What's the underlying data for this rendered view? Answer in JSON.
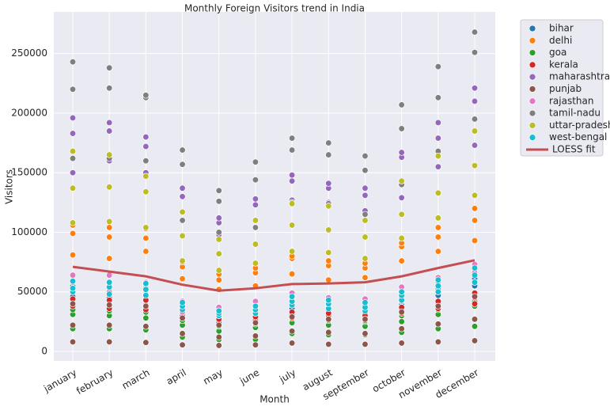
{
  "chart_data": {
    "type": "scatter",
    "title": "Monthly Foreign Visitors trend in India",
    "x_label": "Month",
    "y_label": "Visitors",
    "categories": [
      "january",
      "february",
      "march",
      "april",
      "may",
      "june",
      "july",
      "august",
      "september",
      "october",
      "november",
      "december"
    ],
    "ylim": [
      -8000,
      285000
    ],
    "yticks": [
      0,
      50000,
      100000,
      150000,
      200000,
      250000
    ],
    "grid": true,
    "legend": "outside-right",
    "series": [
      {
        "name": "bihar",
        "color": "#1f77b4",
        "kind": "points",
        "values": [
          [
            46000,
            51000,
            55000
          ],
          [
            45000,
            50000,
            56000
          ],
          [
            44000,
            49000,
            54000
          ],
          [
            32000,
            36000,
            39000
          ],
          [
            28000,
            30000,
            33000
          ],
          [
            30000,
            33000,
            36000
          ],
          [
            36000,
            40000,
            44000
          ],
          [
            34000,
            38000,
            41000
          ],
          [
            32000,
            35000,
            39000
          ],
          [
            40000,
            45000,
            48000
          ],
          [
            47000,
            52000,
            57000
          ],
          [
            55000,
            61000,
            67000
          ]
        ]
      },
      {
        "name": "delhi",
        "color": "#ff7f0e",
        "kind": "points",
        "values": [
          [
            81000,
            99000,
            106000
          ],
          [
            78000,
            96000,
            104000
          ],
          [
            84000,
            95000,
            103000
          ],
          [
            61000,
            71000,
            75000
          ],
          [
            52000,
            60000,
            65000
          ],
          [
            55000,
            66000,
            70000
          ],
          [
            65000,
            78000,
            80000
          ],
          [
            60000,
            72000,
            76000
          ],
          [
            62000,
            70000,
            74000
          ],
          [
            76000,
            88000,
            91000
          ],
          [
            84000,
            96000,
            104000
          ],
          [
            93000,
            110000,
            120000
          ]
        ]
      },
      {
        "name": "goa",
        "color": "#2ca02c",
        "kind": "points",
        "values": [
          [
            19000,
            31000,
            35000
          ],
          [
            19000,
            30000,
            34000
          ],
          [
            18000,
            28000,
            33000
          ],
          [
            12000,
            22000,
            26000
          ],
          [
            10000,
            17000,
            21000
          ],
          [
            10000,
            20000,
            23000
          ],
          [
            15000,
            24000,
            28000
          ],
          [
            14000,
            22000,
            26000
          ],
          [
            14000,
            21000,
            25000
          ],
          [
            16000,
            25000,
            30000
          ],
          [
            19000,
            31000,
            35000
          ],
          [
            21000,
            38000,
            42000
          ]
        ]
      },
      {
        "name": "kerala",
        "color": "#d62728",
        "kind": "points",
        "values": [
          [
            38000,
            41000,
            44000
          ],
          [
            36000,
            40000,
            43000
          ],
          [
            35000,
            39000,
            43000
          ],
          [
            28000,
            30000,
            33000
          ],
          [
            22000,
            24000,
            27000
          ],
          [
            24000,
            26000,
            29000
          ],
          [
            28000,
            31000,
            33000
          ],
          [
            27000,
            30000,
            32000
          ],
          [
            26000,
            28000,
            30000
          ],
          [
            32000,
            35000,
            37000
          ],
          [
            36000,
            40000,
            42000
          ],
          [
            40000,
            45000,
            49000
          ]
        ]
      },
      {
        "name": "maharashtra",
        "color": "#9467bd",
        "kind": "points",
        "values": [
          [
            150000,
            183000,
            196000
          ],
          [
            160000,
            185000,
            192000
          ],
          [
            150000,
            172000,
            180000
          ],
          [
            117000,
            130000,
            137000
          ],
          [
            98000,
            108000,
            112000
          ],
          [
            104000,
            123000,
            128000
          ],
          [
            127000,
            143000,
            148000
          ],
          [
            125000,
            137000,
            141000
          ],
          [
            118000,
            131000,
            137000
          ],
          [
            129000,
            163000,
            167000
          ],
          [
            155000,
            179000,
            192000
          ],
          [
            173000,
            210000,
            221000
          ]
        ]
      },
      {
        "name": "punjab",
        "color": "#8c564b",
        "kind": "points",
        "values": [
          [
            8000,
            22000,
            40000
          ],
          [
            8000,
            22000,
            39000
          ],
          [
            7500,
            21000,
            38000
          ],
          [
            5500,
            15000,
            28000
          ],
          [
            5000,
            12000,
            22000
          ],
          [
            5500,
            13000,
            24000
          ],
          [
            7000,
            17000,
            29000
          ],
          [
            6000,
            16000,
            27000
          ],
          [
            6000,
            15000,
            27000
          ],
          [
            7000,
            19000,
            33000
          ],
          [
            8000,
            23000,
            38000
          ],
          [
            9000,
            27000,
            46000
          ]
        ]
      },
      {
        "name": "rajasthan",
        "color": "#e377c2",
        "kind": "points",
        "values": [
          [
            52000,
            58000,
            64000
          ],
          [
            50000,
            57000,
            64000
          ],
          [
            48000,
            56000,
            58000
          ],
          [
            33000,
            36000,
            42000
          ],
          [
            30000,
            34000,
            37000
          ],
          [
            32000,
            37000,
            42000
          ],
          [
            39000,
            45000,
            49000
          ],
          [
            37000,
            42000,
            45000
          ],
          [
            35000,
            39000,
            44000
          ],
          [
            42000,
            48000,
            54000
          ],
          [
            50000,
            58000,
            62000
          ],
          [
            58000,
            66000,
            73000
          ]
        ]
      },
      {
        "name": "tamil-nadu",
        "color": "#7f7f7f",
        "kind": "points",
        "values": [
          [
            162000,
            220000,
            243000
          ],
          [
            162000,
            221000,
            238000
          ],
          [
            160000,
            213000,
            215000
          ],
          [
            110000,
            157000,
            169000
          ],
          [
            100000,
            126000,
            135000
          ],
          [
            104000,
            144000,
            159000
          ],
          [
            125000,
            169000,
            179000
          ],
          [
            124000,
            165000,
            175000
          ],
          [
            115000,
            152000,
            164000
          ],
          [
            140000,
            187000,
            207000
          ],
          [
            168000,
            213000,
            239000
          ],
          [
            195000,
            251000,
            268000
          ]
        ]
      },
      {
        "name": "uttar-pradesh",
        "color": "#bcbd22",
        "kind": "points",
        "values": [
          [
            108000,
            137000,
            168000
          ],
          [
            109000,
            138000,
            165000
          ],
          [
            104000,
            134000,
            147000
          ],
          [
            76000,
            97000,
            117000
          ],
          [
            68000,
            82000,
            94000
          ],
          [
            74000,
            90000,
            110000
          ],
          [
            84000,
            106000,
            124000
          ],
          [
            83000,
            102000,
            122000
          ],
          [
            78000,
            96000,
            110000
          ],
          [
            95000,
            115000,
            143000
          ],
          [
            112000,
            133000,
            164000
          ],
          [
            131000,
            156000,
            185000
          ]
        ]
      },
      {
        "name": "west-bengal",
        "color": "#17becf",
        "kind": "points",
        "values": [
          [
            50000,
            53000,
            59000
          ],
          [
            48000,
            54000,
            58000
          ],
          [
            47000,
            52000,
            57000
          ],
          [
            35000,
            38000,
            41000
          ],
          [
            30000,
            32000,
            34000
          ],
          [
            32000,
            35000,
            38000
          ],
          [
            39000,
            42000,
            46000
          ],
          [
            36000,
            40000,
            43000
          ],
          [
            34000,
            37000,
            41000
          ],
          [
            43000,
            47000,
            50000
          ],
          [
            50000,
            55000,
            60000
          ],
          [
            58000,
            64000,
            70000
          ]
        ]
      },
      {
        "name": "LOESS fit",
        "color": "#c44e52",
        "kind": "line",
        "values": [
          71000,
          67000,
          63000,
          56000,
          51000,
          53000,
          56500,
          57000,
          58000,
          63000,
          70000,
          76500
        ]
      }
    ]
  }
}
